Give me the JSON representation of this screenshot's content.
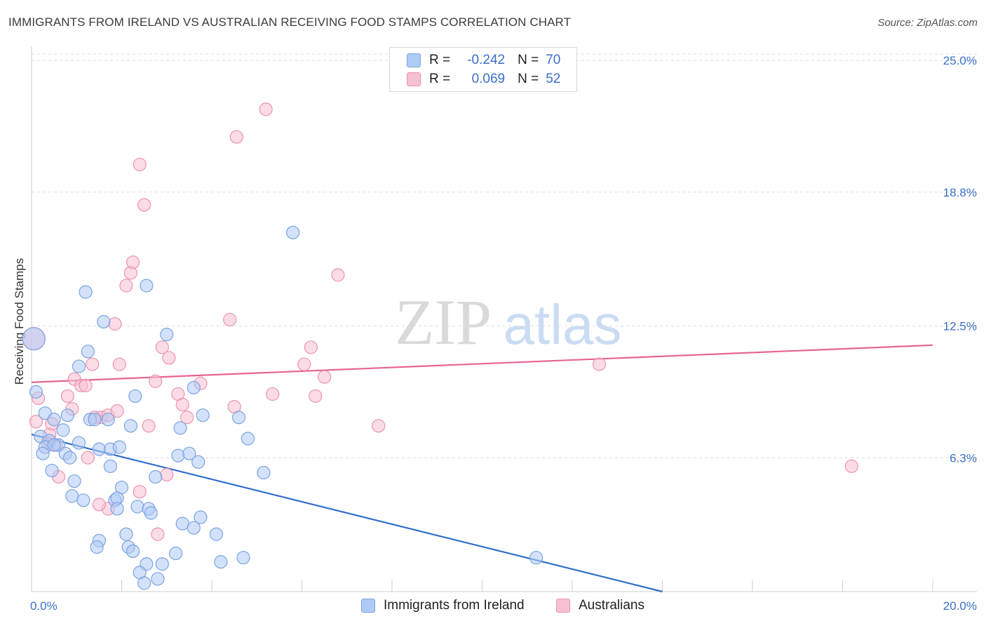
{
  "header": {
    "title": "IMMIGRANTS FROM IRELAND VS AUSTRALIAN RECEIVING FOOD STAMPS CORRELATION CHART",
    "source": "Source: ZipAtlas.com"
  },
  "watermark": {
    "part1": "ZIP",
    "part2": "atlas"
  },
  "legend_top": {
    "rows": [
      {
        "r_label": "R =",
        "r_value": "-0.242",
        "n_label": "N =",
        "n_value": "70"
      },
      {
        "r_label": "R =",
        "r_value": "0.069",
        "n_label": "N =",
        "n_value": "52"
      }
    ]
  },
  "colors": {
    "blue_fill": "#aecbf5",
    "blue_stroke": "#7aa3e0",
    "blue_line": "#2f6fce",
    "pink_fill": "#f7c0d1",
    "pink_stroke": "#ec93ae",
    "pink_line": "#e8648f",
    "tick_label": "#3b6fc9",
    "grid": "#dddddd"
  },
  "chart_data": {
    "type": "scatter",
    "title": "IMMIGRANTS FROM IRELAND VS AUSTRALIAN RECEIVING FOOD STAMPS CORRELATION CHART",
    "xlabel": "",
    "ylabel": "Receiving Food Stamps",
    "xlim": [
      0,
      20
    ],
    "ylim": [
      0,
      25.3
    ],
    "x_tick_labels": [
      "0.0%",
      "20.0%"
    ],
    "y_ticks": [
      6.3,
      12.5,
      18.8,
      25.0
    ],
    "y_tick_labels": [
      "6.3%",
      "12.5%",
      "18.8%",
      "25.0%"
    ],
    "grid": "horizontal dashed",
    "legend": "bottom-center",
    "series": [
      {
        "name": "Immigrants from Ireland",
        "r": -0.242,
        "n": 70,
        "trend": {
          "x": [
            0,
            14.0
          ],
          "y": [
            7.4,
            0
          ]
        },
        "points": [
          {
            "x": 0.05,
            "y": 11.9,
            "big": true
          },
          {
            "x": 0.1,
            "y": 9.4
          },
          {
            "x": 0.3,
            "y": 8.4
          },
          {
            "x": 0.5,
            "y": 8.1
          },
          {
            "x": 0.2,
            "y": 7.3
          },
          {
            "x": 0.4,
            "y": 7.1
          },
          {
            "x": 0.3,
            "y": 6.8
          },
          {
            "x": 0.6,
            "y": 6.9
          },
          {
            "x": 0.25,
            "y": 6.5
          },
          {
            "x": 0.7,
            "y": 7.6
          },
          {
            "x": 0.8,
            "y": 8.3
          },
          {
            "x": 0.75,
            "y": 6.5
          },
          {
            "x": 0.5,
            "y": 6.9
          },
          {
            "x": 1.05,
            "y": 10.6
          },
          {
            "x": 1.25,
            "y": 11.3
          },
          {
            "x": 1.2,
            "y": 14.1
          },
          {
            "x": 1.6,
            "y": 12.7
          },
          {
            "x": 1.3,
            "y": 8.1
          },
          {
            "x": 1.4,
            "y": 8.1
          },
          {
            "x": 1.7,
            "y": 8.1
          },
          {
            "x": 1.05,
            "y": 7.0
          },
          {
            "x": 1.5,
            "y": 6.7
          },
          {
            "x": 1.75,
            "y": 6.7
          },
          {
            "x": 1.95,
            "y": 6.8
          },
          {
            "x": 0.45,
            "y": 5.7
          },
          {
            "x": 0.85,
            "y": 6.3
          },
          {
            "x": 1.75,
            "y": 5.9
          },
          {
            "x": 0.95,
            "y": 5.2
          },
          {
            "x": 0.9,
            "y": 4.5
          },
          {
            "x": 1.15,
            "y": 4.3
          },
          {
            "x": 1.85,
            "y": 4.3
          },
          {
            "x": 1.9,
            "y": 4.4
          },
          {
            "x": 2.0,
            "y": 4.9
          },
          {
            "x": 1.9,
            "y": 3.9
          },
          {
            "x": 2.35,
            "y": 4.0
          },
          {
            "x": 2.6,
            "y": 3.9
          },
          {
            "x": 2.65,
            "y": 3.7
          },
          {
            "x": 2.3,
            "y": 9.2
          },
          {
            "x": 2.2,
            "y": 7.8
          },
          {
            "x": 2.55,
            "y": 14.4
          },
          {
            "x": 3.0,
            "y": 12.1
          },
          {
            "x": 2.75,
            "y": 5.4
          },
          {
            "x": 3.25,
            "y": 6.4
          },
          {
            "x": 3.5,
            "y": 6.5
          },
          {
            "x": 3.7,
            "y": 6.1
          },
          {
            "x": 3.3,
            "y": 7.7
          },
          {
            "x": 3.8,
            "y": 8.3
          },
          {
            "x": 3.6,
            "y": 9.6
          },
          {
            "x": 3.35,
            "y": 3.2
          },
          {
            "x": 3.6,
            "y": 3.0
          },
          {
            "x": 3.75,
            "y": 3.5
          },
          {
            "x": 4.1,
            "y": 2.7
          },
          {
            "x": 2.1,
            "y": 2.7
          },
          {
            "x": 1.5,
            "y": 2.4
          },
          {
            "x": 1.45,
            "y": 2.1
          },
          {
            "x": 2.15,
            "y": 2.1
          },
          {
            "x": 2.25,
            "y": 1.9
          },
          {
            "x": 2.55,
            "y": 1.3
          },
          {
            "x": 2.9,
            "y": 1.3
          },
          {
            "x": 3.2,
            "y": 1.8
          },
          {
            "x": 2.4,
            "y": 0.9
          },
          {
            "x": 2.5,
            "y": 0.4
          },
          {
            "x": 2.8,
            "y": 0.6
          },
          {
            "x": 4.2,
            "y": 1.4
          },
          {
            "x": 4.7,
            "y": 1.6
          },
          {
            "x": 4.6,
            "y": 8.2
          },
          {
            "x": 4.8,
            "y": 7.2
          },
          {
            "x": 5.15,
            "y": 5.6
          },
          {
            "x": 5.8,
            "y": 16.9
          },
          {
            "x": 11.2,
            "y": 1.6
          }
        ]
      },
      {
        "name": "Australians",
        "r": 0.069,
        "n": 52,
        "trend": {
          "x": [
            0,
            20.0
          ],
          "y": [
            9.85,
            11.6
          ]
        },
        "points": [
          {
            "x": 0.05,
            "y": 11.9,
            "big": true
          },
          {
            "x": 0.15,
            "y": 9.1
          },
          {
            "x": 0.1,
            "y": 8.0
          },
          {
            "x": 0.4,
            "y": 7.4
          },
          {
            "x": 0.45,
            "y": 7.9
          },
          {
            "x": 0.35,
            "y": 7.0
          },
          {
            "x": 0.55,
            "y": 6.9
          },
          {
            "x": 0.6,
            "y": 5.4
          },
          {
            "x": 0.8,
            "y": 9.2
          },
          {
            "x": 0.9,
            "y": 8.6
          },
          {
            "x": 0.95,
            "y": 10.0
          },
          {
            "x": 1.1,
            "y": 9.7
          },
          {
            "x": 1.2,
            "y": 9.7
          },
          {
            "x": 1.35,
            "y": 10.7
          },
          {
            "x": 1.4,
            "y": 8.2
          },
          {
            "x": 1.55,
            "y": 8.2
          },
          {
            "x": 1.7,
            "y": 8.3
          },
          {
            "x": 1.9,
            "y": 8.5
          },
          {
            "x": 1.85,
            "y": 12.6
          },
          {
            "x": 1.95,
            "y": 10.7
          },
          {
            "x": 2.1,
            "y": 14.4
          },
          {
            "x": 2.2,
            "y": 15.0
          },
          {
            "x": 2.25,
            "y": 15.5
          },
          {
            "x": 2.4,
            "y": 20.1
          },
          {
            "x": 2.5,
            "y": 18.2
          },
          {
            "x": 2.6,
            "y": 7.8
          },
          {
            "x": 2.75,
            "y": 9.9
          },
          {
            "x": 2.9,
            "y": 11.5
          },
          {
            "x": 3.05,
            "y": 11.0
          },
          {
            "x": 3.25,
            "y": 9.3
          },
          {
            "x": 3.35,
            "y": 8.8
          },
          {
            "x": 3.45,
            "y": 8.2
          },
          {
            "x": 3.75,
            "y": 9.8
          },
          {
            "x": 4.4,
            "y": 12.8
          },
          {
            "x": 4.5,
            "y": 8.7
          },
          {
            "x": 4.55,
            "y": 21.4
          },
          {
            "x": 5.2,
            "y": 22.7
          },
          {
            "x": 5.35,
            "y": 9.3
          },
          {
            "x": 6.05,
            "y": 10.7
          },
          {
            "x": 6.2,
            "y": 11.5
          },
          {
            "x": 6.3,
            "y": 9.2
          },
          {
            "x": 6.5,
            "y": 10.1
          },
          {
            "x": 6.8,
            "y": 14.9
          },
          {
            "x": 7.7,
            "y": 7.8
          },
          {
            "x": 12.6,
            "y": 10.7
          },
          {
            "x": 18.2,
            "y": 5.9
          },
          {
            "x": 1.7,
            "y": 3.9
          },
          {
            "x": 1.25,
            "y": 6.3
          },
          {
            "x": 2.4,
            "y": 4.7
          },
          {
            "x": 2.8,
            "y": 2.7
          },
          {
            "x": 3.0,
            "y": 5.5
          },
          {
            "x": 1.5,
            "y": 4.1
          }
        ]
      }
    ]
  }
}
